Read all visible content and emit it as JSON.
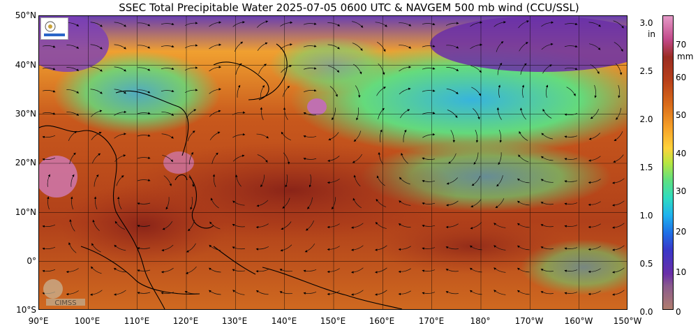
{
  "title": "SSEC Total Precipitable Water  2025-07-05 0600 UTC & NAVGEM 500 mb wind (CCU/SSL)",
  "lat_labels": [
    "50°N",
    "40°N",
    "30°N",
    "20°N",
    "10°N",
    "0°",
    "10°S"
  ],
  "lon_labels": [
    "90°E",
    "100°E",
    "110°E",
    "120°E",
    "130°E",
    "140°E",
    "150°E",
    "160°E",
    "170°E",
    "180°",
    "170°W",
    "160°W",
    "150°W"
  ],
  "colorbar": {
    "in_labels": [
      "3.0",
      "2.5",
      "2.0",
      "1.5",
      "1.0",
      "0.5",
      "0.0"
    ],
    "in_unit": "in",
    "mm_labels": [
      "70",
      "60",
      "50",
      "40",
      "30",
      "20",
      "10",
      "0"
    ],
    "mm_unit": "mm"
  },
  "logos": {
    "bottom_left_text": "CIMSS"
  },
  "colors": {
    "moist": "#b03a1a",
    "mid": "#f0a030",
    "dry": "#2fa8e6",
    "very_dry": "#6a2fa8",
    "saturated": "#d07ab8"
  }
}
